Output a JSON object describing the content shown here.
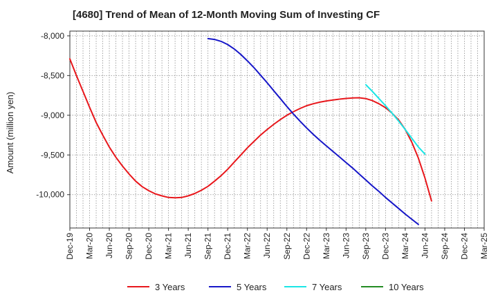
{
  "chart_data": {
    "type": "line",
    "title": "[4680]  Trend of Mean of 12-Month Moving Sum of Investing CF",
    "xlabel": "",
    "ylabel": "Amount (million yen)",
    "ylim": [
      -10420,
      -7940
    ],
    "y_ticks": [
      -8000,
      -8500,
      -9000,
      -9500,
      -10000
    ],
    "y_tick_labels": [
      "-8,000",
      "-8,500",
      "-9,000",
      "-9,500",
      "-10,000"
    ],
    "x_start": "Dec-19",
    "x_tick_labels": [
      "Dec-19",
      "Mar-20",
      "Jun-20",
      "Sep-20",
      "Dec-20",
      "Mar-21",
      "Jun-21",
      "Sep-21",
      "Dec-21",
      "Mar-22",
      "Jun-22",
      "Sep-22",
      "Dec-22",
      "Mar-23",
      "Jun-23",
      "Sep-23",
      "Dec-23",
      "Mar-24",
      "Jun-24",
      "Sep-24",
      "Dec-24",
      "Mar-25"
    ],
    "series": [
      {
        "name": "3 Years",
        "color": "#e8161b",
        "points": [
          [
            0,
            -8290
          ],
          [
            1,
            -8500
          ],
          [
            2,
            -8700
          ],
          [
            3,
            -8900
          ],
          [
            4,
            -9090
          ],
          [
            5,
            -9250
          ],
          [
            6,
            -9400
          ],
          [
            7,
            -9530
          ],
          [
            8,
            -9640
          ],
          [
            9,
            -9740
          ],
          [
            10,
            -9830
          ],
          [
            11,
            -9900
          ],
          [
            12,
            -9950
          ],
          [
            13,
            -9990
          ],
          [
            14,
            -10015
          ],
          [
            15,
            -10035
          ],
          [
            16,
            -10040
          ],
          [
            17,
            -10035
          ],
          [
            18,
            -10015
          ],
          [
            19,
            -9985
          ],
          [
            20,
            -9945
          ],
          [
            21,
            -9895
          ],
          [
            22,
            -9830
          ],
          [
            23,
            -9760
          ],
          [
            24,
            -9680
          ],
          [
            25,
            -9590
          ],
          [
            26,
            -9500
          ],
          [
            27,
            -9410
          ],
          [
            28,
            -9330
          ],
          [
            29,
            -9250
          ],
          [
            30,
            -9180
          ],
          [
            31,
            -9115
          ],
          [
            32,
            -9055
          ],
          [
            33,
            -9000
          ],
          [
            34,
            -8955
          ],
          [
            35,
            -8915
          ],
          [
            36,
            -8880
          ],
          [
            37,
            -8855
          ],
          [
            38,
            -8835
          ],
          [
            39,
            -8820
          ],
          [
            40,
            -8808
          ],
          [
            41,
            -8797
          ],
          [
            42,
            -8788
          ],
          [
            43,
            -8782
          ],
          [
            44,
            -8780
          ],
          [
            45,
            -8790
          ],
          [
            46,
            -8815
          ],
          [
            47,
            -8855
          ],
          [
            48,
            -8905
          ],
          [
            49,
            -8975
          ],
          [
            50,
            -9060
          ],
          [
            51,
            -9180
          ],
          [
            52,
            -9340
          ],
          [
            53,
            -9540
          ],
          [
            54,
            -9790
          ],
          [
            55,
            -10080
          ]
        ]
      },
      {
        "name": "5 Years",
        "color": "#1616c8",
        "points": [
          [
            21,
            -8035
          ],
          [
            22,
            -8045
          ],
          [
            23,
            -8070
          ],
          [
            24,
            -8110
          ],
          [
            25,
            -8165
          ],
          [
            26,
            -8235
          ],
          [
            27,
            -8315
          ],
          [
            28,
            -8400
          ],
          [
            29,
            -8495
          ],
          [
            30,
            -8590
          ],
          [
            31,
            -8690
          ],
          [
            32,
            -8790
          ],
          [
            33,
            -8890
          ],
          [
            34,
            -8985
          ],
          [
            35,
            -9075
          ],
          [
            36,
            -9160
          ],
          [
            37,
            -9240
          ],
          [
            38,
            -9315
          ],
          [
            39,
            -9385
          ],
          [
            40,
            -9455
          ],
          [
            41,
            -9525
          ],
          [
            42,
            -9595
          ],
          [
            43,
            -9665
          ],
          [
            44,
            -9740
          ],
          [
            45,
            -9815
          ],
          [
            46,
            -9890
          ],
          [
            47,
            -9960
          ],
          [
            48,
            -10035
          ],
          [
            49,
            -10105
          ],
          [
            50,
            -10175
          ],
          [
            51,
            -10245
          ],
          [
            52,
            -10310
          ],
          [
            53,
            -10375
          ]
        ]
      },
      {
        "name": "7 Years",
        "color": "#19e6e6",
        "points": [
          [
            45,
            -8615
          ],
          [
            46,
            -8700
          ],
          [
            47,
            -8790
          ],
          [
            48,
            -8880
          ],
          [
            49,
            -8975
          ],
          [
            50,
            -9075
          ],
          [
            51,
            -9180
          ],
          [
            52,
            -9290
          ],
          [
            53,
            -9400
          ],
          [
            54,
            -9490
          ]
        ]
      },
      {
        "name": "10 Years",
        "color": "#228b22",
        "points": []
      }
    ],
    "legend": [
      {
        "label": "3 Years",
        "color": "#e8161b"
      },
      {
        "label": "5 Years",
        "color": "#1616c8"
      },
      {
        "label": "7 Years",
        "color": "#19e6e6"
      },
      {
        "label": "10 Years",
        "color": "#228b22"
      }
    ],
    "grid": true,
    "legend_position": "bottom"
  }
}
